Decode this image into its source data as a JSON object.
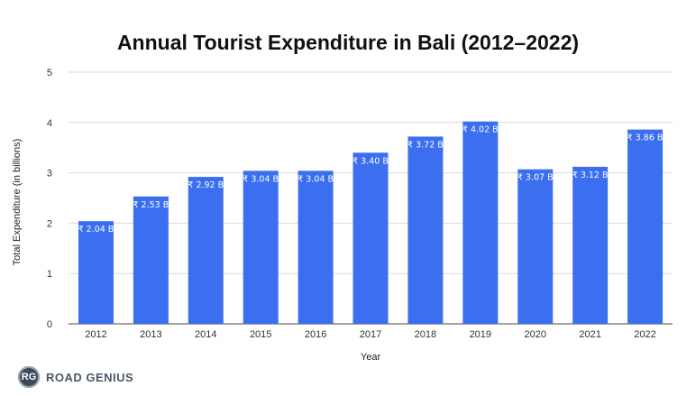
{
  "chart_data": {
    "type": "bar",
    "title": "Annual Tourist Expenditure in Bali (2012–2022)",
    "xlabel": "Year",
    "ylabel": "Total Expenditure (in billions)",
    "ylim": [
      0,
      5
    ],
    "yticks": [
      "0",
      "1",
      "2",
      "3",
      "4",
      "5"
    ],
    "grid": true,
    "bar_color": "#3b6ff0",
    "categories": [
      "2012",
      "2013",
      "2014",
      "2015",
      "2016",
      "2017",
      "2018",
      "2019",
      "2020",
      "2021",
      "2022"
    ],
    "values": [
      2.04,
      2.53,
      2.92,
      3.04,
      3.04,
      3.4,
      3.72,
      4.02,
      3.07,
      3.12,
      3.86
    ],
    "data_labels": [
      "₹ 2.04 B",
      "₹ 2.53 B",
      "₹ 2.92 B",
      "₹ 3.04 B",
      "₹ 3.04 B",
      "₹ 3.40 B",
      "₹ 3.72 B",
      "₹ 4.02 B",
      "₹ 3.07 B",
      "₹ 3.12 B",
      "₹ 3.86 B"
    ]
  },
  "brand": {
    "logo_text": "RG",
    "name": "ROAD GENIUS"
  }
}
